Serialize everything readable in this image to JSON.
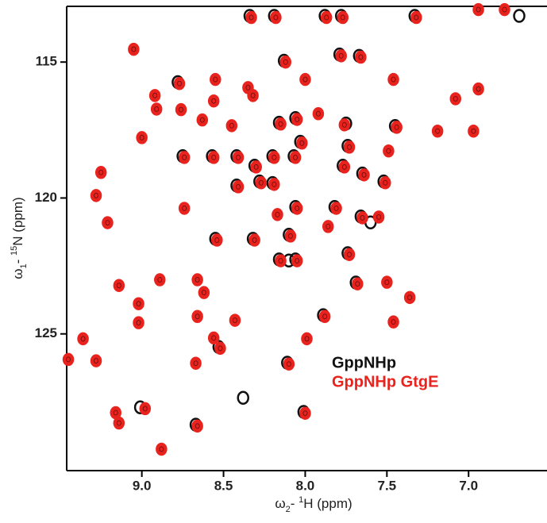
{
  "chart_data": {
    "type": "scatter",
    "xlabel_parts": [
      "ω",
      "2",
      "- ",
      "1",
      "H (ppm)"
    ],
    "ylabel_parts": [
      "ω",
      "1",
      "- ",
      "15",
      "N (ppm)"
    ],
    "xlim": [
      9.46,
      6.52
    ],
    "ylim": [
      112.95,
      130.03
    ],
    "xticks": [
      {
        "value": 9,
        "label": "9.0"
      },
      {
        "value": 8.5,
        "label": "8.5"
      },
      {
        "value": 8,
        "label": "8.0"
      },
      {
        "value": 7.5,
        "label": "7.5"
      },
      {
        "value": 7,
        "label": "7.0"
      }
    ],
    "yticks": [
      115,
      120,
      125
    ],
    "series": [
      {
        "name": "GppNHp",
        "color": "#111111",
        "x": [
          8.34,
          8.19,
          7.88,
          7.78,
          7.33,
          6.69,
          8.78,
          8.13,
          7.79,
          7.67,
          8.16,
          8.06,
          7.75,
          7.45,
          8.75,
          8.57,
          8.42,
          8.31,
          8.2,
          8.07,
          8.03,
          7.74,
          7.77,
          7.65,
          7.52,
          8.28,
          8.42,
          8.2,
          8.06,
          7.82,
          7.66,
          8.55,
          8.32,
          8.1,
          7.74,
          7.69,
          8.06,
          8.16,
          7.89,
          8.53,
          8.11,
          8.01,
          8.67,
          9.01,
          8.38,
          7.6,
          8.1
        ],
        "y": [
          113.3,
          113.3,
          113.3,
          113.3,
          113.3,
          113.3,
          115.74,
          114.95,
          114.72,
          114.77,
          117.23,
          117.06,
          117.26,
          117.35,
          118.46,
          118.46,
          118.46,
          118.81,
          118.46,
          118.46,
          117.93,
          118.08,
          118.81,
          119.1,
          119.39,
          119.39,
          119.54,
          119.45,
          120.33,
          120.33,
          120.68,
          121.5,
          121.5,
          121.35,
          122.03,
          123.11,
          122.26,
          122.26,
          124.31,
          125.48,
          126.06,
          127.87,
          128.34,
          127.7,
          127.35,
          120.9,
          122.3
        ]
      },
      {
        "name": "GppNHp GtgE",
        "color": "#e8231e",
        "x": [
          8.33,
          8.18,
          7.87,
          7.77,
          7.32,
          6.94,
          6.78,
          9.05,
          8.77,
          8.55,
          8.12,
          8.56,
          8.91,
          8.92,
          8.63,
          8.35,
          8.32,
          8.0,
          7.78,
          7.66,
          7.46,
          7.08,
          6.94,
          8.76,
          8.45,
          8.15,
          8.05,
          7.92,
          7.76,
          7.44,
          7.19,
          6.97,
          9.0,
          8.74,
          8.56,
          8.41,
          8.3,
          8.19,
          8.06,
          8.02,
          7.73,
          7.49,
          7.76,
          7.64,
          7.51,
          8.27,
          8.41,
          8.19,
          9.25,
          9.28,
          9.21,
          8.74,
          8.17,
          8.05,
          7.81,
          7.65,
          7.55,
          8.54,
          8.31,
          8.09,
          7.86,
          7.73,
          7.68,
          7.5,
          8.05,
          8.15,
          9.14,
          8.89,
          8.66,
          8.62,
          9.02,
          8.66,
          8.43,
          7.88,
          7.36,
          7.46,
          9.36,
          9.02,
          8.56,
          8.52,
          7.99,
          9.45,
          9.28,
          8.67,
          8.1,
          9.16,
          8.98,
          9.14,
          8.66,
          8.0,
          8.88
        ],
        "y": [
          113.36,
          113.36,
          113.36,
          113.36,
          113.36,
          113.07,
          113.07,
          114.53,
          115.79,
          115.64,
          115.0,
          116.43,
          116.73,
          116.23,
          117.13,
          115.94,
          116.23,
          115.64,
          114.77,
          114.82,
          115.64,
          116.35,
          115.99,
          116.75,
          117.34,
          117.28,
          117.11,
          116.9,
          117.31,
          117.4,
          117.54,
          117.54,
          117.78,
          118.51,
          118.51,
          118.51,
          118.86,
          118.51,
          118.51,
          117.98,
          118.13,
          118.27,
          118.86,
          119.15,
          119.44,
          119.44,
          119.59,
          119.5,
          119.06,
          119.91,
          120.91,
          120.38,
          120.61,
          120.38,
          120.38,
          120.73,
          120.7,
          121.55,
          121.55,
          121.4,
          121.05,
          122.08,
          123.16,
          123.1,
          122.31,
          122.31,
          123.22,
          123.01,
          123.01,
          123.48,
          123.89,
          124.36,
          124.5,
          124.36,
          123.66,
          124.56,
          125.18,
          124.59,
          125.15,
          125.53,
          125.18,
          125.94,
          125.99,
          126.08,
          126.11,
          127.9,
          127.75,
          128.28,
          128.39,
          127.92,
          129.24
        ]
      }
    ]
  }
}
